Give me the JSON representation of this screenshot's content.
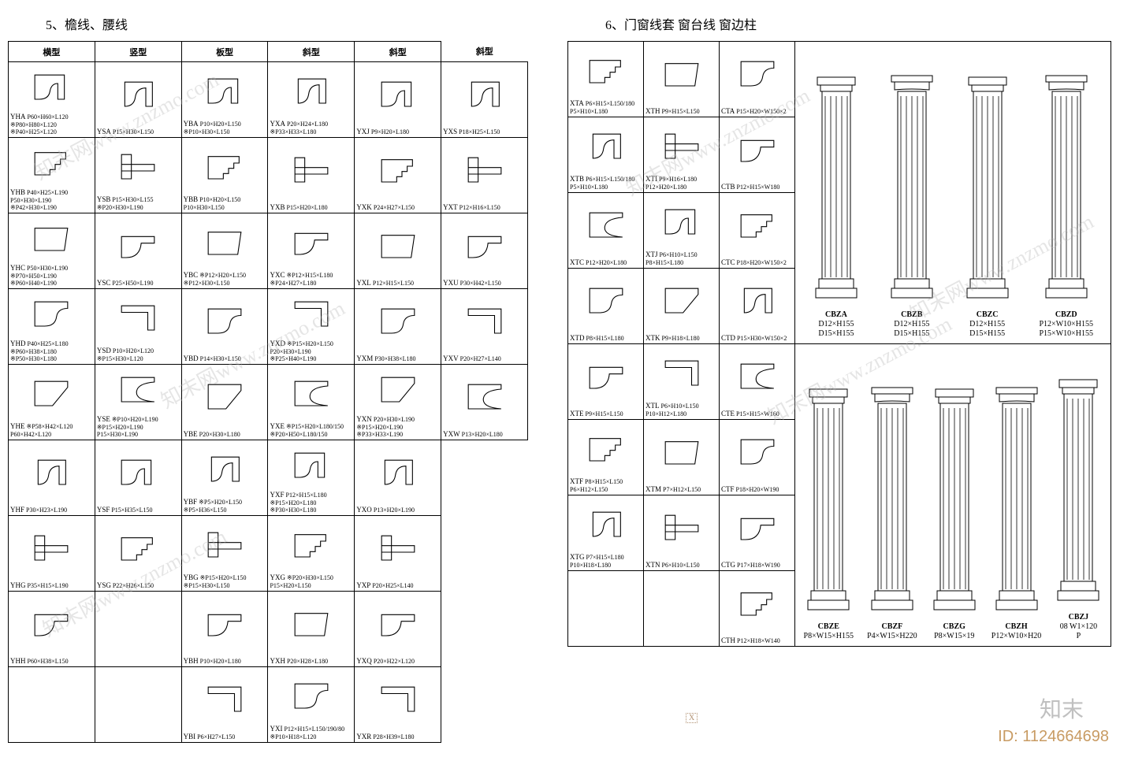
{
  "watermark_text": "知末网www.znzmo.com",
  "id_text": "ID: 1124664698",
  "zhimo_text": "知末",
  "xbox_text": "X",
  "stroke": "#000000",
  "fill": "#ffffff",
  "left": {
    "title": "5、檐线、腰线",
    "headers": [
      "横型",
      "竖型",
      "板型",
      "斜型",
      "斜型",
      "斜型"
    ],
    "rows": [
      [
        {
          "code": "YHA",
          "dims": "P60×H60×L120\n※P80×H80×L120\n※P40×H25×L120"
        },
        {
          "code": "YSA",
          "dims": "P15×H30×L150"
        },
        {
          "code": "YBA",
          "dims": "P10×H20×L150\n※P10×H30×L150"
        },
        {
          "code": "YXA",
          "dims": "P20×H24×L180\n※P33×H33×L180"
        },
        {
          "code": "YXJ",
          "dims": "P9×H20×L180"
        },
        {
          "code": "YXS",
          "dims": "P18×H25×L150"
        }
      ],
      [
        {
          "code": "YHB",
          "dims": "P40×H25×L190\nP50×H30×L190\n※P42×H30×L190"
        },
        {
          "code": "YSB",
          "dims": "P15×H30×L155\n※P20×H30×L190"
        },
        {
          "code": "YBB",
          "dims": "P10×H20×L150\nP10×H30×L150"
        },
        {
          "code": "YXB",
          "dims": "P15×H20×L180"
        },
        {
          "code": "YXK",
          "dims": "P24×H27×L150"
        },
        {
          "code": "YXT",
          "dims": "P12×H16×L150"
        }
      ],
      [
        {
          "code": "YHC",
          "dims": "P50×H30×L190\n※P70×H50×L190\n※P60×H40×L190"
        },
        {
          "code": "YSC",
          "dims": "P25×H50×L190"
        },
        {
          "code": "YBC",
          "dims": "※P12×H20×L150\n※P12×H30×L150"
        },
        {
          "code": "YXC",
          "dims": "※P12×H15×L180\n※P24×H27×L180"
        },
        {
          "code": "YXL",
          "dims": "P12×H15×L150"
        },
        {
          "code": "YXU",
          "dims": "P30×H42×L150"
        }
      ],
      [
        {
          "code": "YHD",
          "dims": "P40×H25×L180\n※P60×H38×L180\n※P50×H30×L180"
        },
        {
          "code": "YSD",
          "dims": "P10×H20×L120\n※P15×H30×L120"
        },
        {
          "code": "YBD",
          "dims": "P14×H30×L150"
        },
        {
          "code": "YXD",
          "dims": "※P15×H20×L150\nP20×H30×L190\n※P25×H40×L190"
        },
        {
          "code": "YXM",
          "dims": "P30×H38×L180"
        },
        {
          "code": "YXV",
          "dims": "P20×H27×L140"
        }
      ],
      [
        {
          "code": "YHE",
          "dims": "※P58×H42×L120\nP60×H42×L120"
        },
        {
          "code": "YSE",
          "dims": "※P10×H20×L190\n※P15×H20×L190\nP15×H30×L190"
        },
        {
          "code": "YBE",
          "dims": "P20×H30×L180"
        },
        {
          "code": "YXE",
          "dims": "※P15×H20×L180/150\n※P20×H50×L180/150"
        },
        {
          "code": "YXN",
          "dims": "P20×H30×L190\n※P15×H20×L190\n※P33×H33×L190"
        },
        {
          "code": "YXW",
          "dims": "P13×H20×L180"
        }
      ],
      [
        {
          "code": "YHF",
          "dims": "P30×H23×L190"
        },
        {
          "code": "YSF",
          "dims": "P15×H35×L150"
        },
        {
          "code": "YBF",
          "dims": "※P5×H20×L150\n※P5×H36×L150"
        },
        {
          "code": "YXF",
          "dims": "P12×H15×L180\n※P15×H20×L180\n※P30×H30×L180"
        },
        {
          "code": "YXO",
          "dims": "P13×H20×L190"
        },
        {
          "code": "",
          "dims": ""
        }
      ],
      [
        {
          "code": "YHG",
          "dims": "P35×H15×L190"
        },
        {
          "code": "YSG",
          "dims": "P22×H26×L150"
        },
        {
          "code": "YBG",
          "dims": "※P15×H20×L150\n※P15×H30×L150"
        },
        {
          "code": "YXG",
          "dims": "※P20×H30×L150\nP15×H20×L150"
        },
        {
          "code": "YXP",
          "dims": "P20×H25×L140"
        },
        {
          "code": "",
          "dims": ""
        }
      ],
      [
        {
          "code": "YHH",
          "dims": "P60×H38×L150"
        },
        {
          "code": "",
          "dims": ""
        },
        {
          "code": "YBH",
          "dims": "P10×H20×L180"
        },
        {
          "code": "YXH",
          "dims": "P20×H28×L180"
        },
        {
          "code": "YXQ",
          "dims": "P20×H22×L120"
        },
        {
          "code": "",
          "dims": ""
        }
      ],
      [
        {
          "code": "",
          "dims": ""
        },
        {
          "code": "",
          "dims": ""
        },
        {
          "code": "YBI",
          "dims": "P6×H27×L150"
        },
        {
          "code": "YXI",
          "dims": "P12×H15×L150/190/80\n※P10×H18×L120"
        },
        {
          "code": "YXR",
          "dims": "P28×H39×L180"
        },
        {
          "code": "",
          "dims": ""
        }
      ]
    ]
  },
  "right": {
    "title": "6、门窗线套  窗台线  窗边柱",
    "rows": [
      [
        {
          "code": "XTA",
          "dims": "P6×H15×L150/180\nP5×H10×L180"
        },
        {
          "code": "XTH",
          "dims": "P9×H15×L150"
        },
        {
          "code": "CTA",
          "dims": "P15×H20×W150×2"
        }
      ],
      [
        {
          "code": "XTB",
          "dims": "P6×H15×L150/180\nP5×H10×L180"
        },
        {
          "code": "XTI",
          "dims": "P9×H16×L180\nP12×H20×L180"
        },
        {
          "code": "CTB",
          "dims": "P12×H15×W180"
        }
      ],
      [
        {
          "code": "XTC",
          "dims": "P12×H20×L180"
        },
        {
          "code": "XTJ",
          "dims": "P6×H10×L150\nP8×H15×L180"
        },
        {
          "code": "CTC",
          "dims": "P18×H20×W150×2"
        }
      ],
      [
        {
          "code": "XTD",
          "dims": "P8×H15×L180"
        },
        {
          "code": "XTK",
          "dims": "P9×H18×L180"
        },
        {
          "code": "CTD",
          "dims": "P15×H30×W150×2"
        }
      ],
      [
        {
          "code": "XTE",
          "dims": "P9×H15×L150"
        },
        {
          "code": "XTL",
          "dims": "P6×H10×L150\nP10×H12×L180"
        },
        {
          "code": "CTE",
          "dims": "P15×H15×W160"
        }
      ],
      [
        {
          "code": "XTF",
          "dims": "P8×H15×L150\nP6×H12×L150"
        },
        {
          "code": "XTM",
          "dims": "P7×H12×L150"
        },
        {
          "code": "CTF",
          "dims": "P18×H20×W190"
        }
      ],
      [
        {
          "code": "XTG",
          "dims": "P7×H15×L180\nP10×H18×L180"
        },
        {
          "code": "XTN",
          "dims": "P6×H10×L150"
        },
        {
          "code": "CTG",
          "dims": "P17×H18×W190"
        }
      ],
      [
        {
          "code": "",
          "dims": ""
        },
        {
          "code": "",
          "dims": ""
        },
        {
          "code": "CTH",
          "dims": "P12×H18×W140"
        }
      ]
    ],
    "pilasters_top": [
      {
        "code": "CBZA",
        "dims": "D12×H155\nD15×H155"
      },
      {
        "code": "CBZB",
        "dims": "D12×H155\nD15×H155"
      },
      {
        "code": "CBZC",
        "dims": "D12×H155\nD15×H155"
      },
      {
        "code": "CBZD",
        "dims": "P12×W10×H155\nP15×W10×H155"
      }
    ],
    "pilasters_bottom": [
      {
        "code": "CBZE",
        "dims": "P8×W15×H155"
      },
      {
        "code": "CBZF",
        "dims": "P4×W15×H220"
      },
      {
        "code": "CBZG",
        "dims": "P8×W15×19"
      },
      {
        "code": "CBZH",
        "dims": "P12×W10×H20"
      },
      {
        "code": "CBZJ",
        "dims": "08 W1×120\nP "
      }
    ]
  }
}
